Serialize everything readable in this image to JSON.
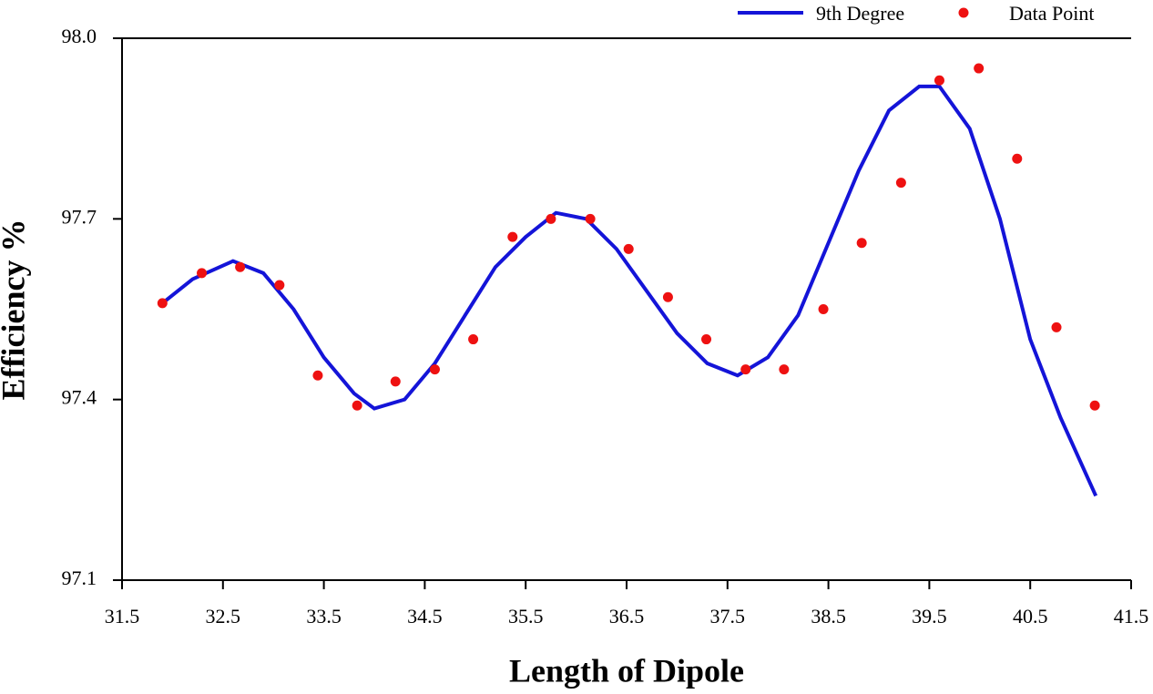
{
  "chart_data": {
    "type": "line+scatter",
    "xlabel": "Length of Dipole",
    "ylabel": "Efficiency %",
    "xlim": [
      31.5,
      41.5
    ],
    "xticks": [
      31.5,
      32.5,
      33.5,
      34.5,
      35.5,
      36.5,
      37.5,
      38.5,
      39.5,
      40.5,
      41.5
    ],
    "ylim": [
      97.1,
      98.0
    ],
    "yticks": [
      97.1,
      97.4,
      97.7,
      {
        "value": 98.0,
        "label": "98.0"
      }
    ],
    "legend": "top-right",
    "series": [
      {
        "name": "9th Degree",
        "type": "line",
        "color": "#1414d8",
        "x": [
          31.9,
          32.2,
          32.6,
          32.9,
          33.2,
          33.5,
          33.8,
          34.0,
          34.3,
          34.6,
          34.9,
          35.2,
          35.5,
          35.8,
          36.1,
          36.4,
          36.7,
          37.0,
          37.3,
          37.6,
          37.9,
          38.2,
          38.5,
          38.8,
          39.1,
          39.4,
          39.6,
          39.9,
          40.2,
          40.5,
          40.8,
          41.15
        ],
        "values": [
          97.56,
          97.6,
          97.63,
          97.61,
          97.55,
          97.47,
          97.41,
          97.385,
          97.4,
          97.46,
          97.54,
          97.62,
          97.67,
          97.71,
          97.7,
          97.65,
          97.58,
          97.51,
          97.46,
          97.44,
          97.47,
          97.54,
          97.66,
          97.78,
          97.88,
          97.92,
          97.92,
          97.85,
          97.7,
          97.5,
          97.37,
          97.24
        ]
      },
      {
        "name": "Data Point",
        "type": "scatter",
        "color": "#ee1111",
        "x": [
          31.9,
          32.29,
          32.67,
          33.06,
          33.44,
          33.83,
          34.21,
          34.6,
          34.98,
          35.37,
          35.75,
          36.14,
          36.52,
          36.91,
          37.29,
          37.68,
          38.06,
          38.45,
          38.83,
          39.22,
          39.6,
          39.99,
          40.37,
          40.76,
          41.14
        ],
        "values": [
          97.56,
          97.61,
          97.62,
          97.59,
          97.44,
          97.39,
          97.43,
          97.45,
          97.5,
          97.67,
          97.7,
          97.7,
          97.65,
          97.57,
          97.5,
          97.45,
          97.45,
          97.55,
          97.66,
          97.76,
          97.93,
          97.95,
          97.8,
          97.52,
          97.39
        ]
      }
    ]
  }
}
